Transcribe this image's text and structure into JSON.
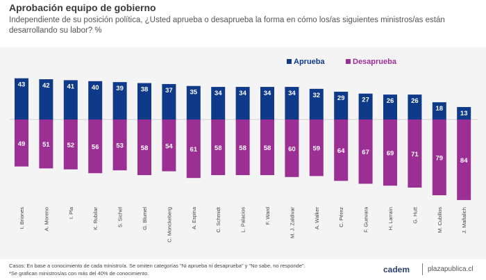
{
  "header": {
    "title": "Aprobación equipo de gobierno",
    "subtitle": "Independiente de su posición política, ¿Usted aprueba o desaprueba la forma en cómo los/as siguientes ministros/as están desarrollando su labor? %"
  },
  "chart_data": {
    "type": "bar",
    "categories": [
      "I. Briones",
      "A. Moreno",
      "I. Pla",
      "K. Rubilar",
      "S. Sichel",
      "G. Blumel",
      "C. Monckeberg",
      "A. Espina",
      "C. Schmidt",
      "L. Palacios",
      "F. Ward",
      "M. J. Zaldivar",
      "A. Walker",
      "C. Pérez",
      "F. Guevara",
      "H. Larraín",
      "G. Hutt",
      "M. Cubillos",
      "J. Mañalich"
    ],
    "series": [
      {
        "name": "Aprueba",
        "color": "#0f3a8a",
        "values": [
          43,
          42,
          41,
          40,
          39,
          38,
          37,
          35,
          34,
          34,
          34,
          34,
          32,
          29,
          27,
          26,
          26,
          18,
          13
        ]
      },
      {
        "name": "Desaprueba",
        "color": "#9b2f94",
        "values": [
          49,
          51,
          52,
          56,
          53,
          58,
          54,
          61,
          58,
          58,
          58,
          60,
          59,
          64,
          67,
          69,
          71,
          79,
          84
        ]
      }
    ],
    "layout": "diverging-vertical",
    "legend": "top-right"
  },
  "footer": {
    "note1": "Casos: En base a conocimiento de cada ministro/a. Se omiten categorías \"Ni aprueba ni desaprueba\" y \"No sabe, no responde\".",
    "note2": "*Se grafican ministros/as con más del 40% de conocimiento.",
    "brand": "cadem",
    "site": "plazapublica.cl"
  }
}
